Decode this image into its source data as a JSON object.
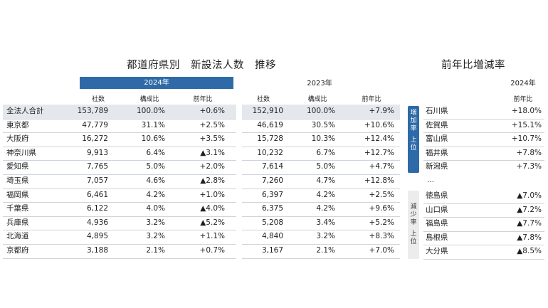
{
  "left_title": "都道府県別　新設法人数　推移",
  "right_title": "前年比増減率",
  "year_2024": "2024年",
  "year_2023": "2023年",
  "columns": {
    "companies": "社数",
    "share": "構成比",
    "yoy": "前年比"
  },
  "rows": [
    {
      "pref": "全法人合計",
      "c24": "153,789",
      "s24": "100.0%",
      "y24": "+0.6%",
      "c23": "152,910",
      "s23": "100.0%",
      "y23": "+7.9%"
    },
    {
      "pref": "東京都",
      "c24": "47,779",
      "s24": "31.1%",
      "y24": "+2.5%",
      "c23": "46,619",
      "s23": "30.5%",
      "y23": "+10.6%"
    },
    {
      "pref": "大阪府",
      "c24": "16,272",
      "s24": "10.6%",
      "y24": "+3.5%",
      "c23": "15,728",
      "s23": "10.3%",
      "y23": "+12.4%"
    },
    {
      "pref": "神奈川県",
      "c24": "9,913",
      "s24": "6.4%",
      "y24": "▲3.1%",
      "c23": "10,232",
      "s23": "6.7%",
      "y23": "+12.7%"
    },
    {
      "pref": "愛知県",
      "c24": "7,765",
      "s24": "5.0%",
      "y24": "+2.0%",
      "c23": "7,614",
      "s23": "5.0%",
      "y23": "+4.7%"
    },
    {
      "pref": "埼玉県",
      "c24": "7,057",
      "s24": "4.6%",
      "y24": "▲2.8%",
      "c23": "7,260",
      "s23": "4.7%",
      "y23": "+12.8%"
    },
    {
      "pref": "福岡県",
      "c24": "6,461",
      "s24": "4.2%",
      "y24": "+1.0%",
      "c23": "6,397",
      "s23": "4.2%",
      "y23": "+2.5%"
    },
    {
      "pref": "千葉県",
      "c24": "6,122",
      "s24": "4.0%",
      "y24": "▲4.0%",
      "c23": "6,375",
      "s23": "4.2%",
      "y23": "+9.6%"
    },
    {
      "pref": "兵庫県",
      "c24": "4,936",
      "s24": "3.2%",
      "y24": "▲5.2%",
      "c23": "5,208",
      "s23": "3.4%",
      "y23": "+5.2%"
    },
    {
      "pref": "北海道",
      "c24": "4,895",
      "s24": "3.2%",
      "y24": "+1.1%",
      "c23": "4,840",
      "s23": "3.2%",
      "y23": "+8.3%"
    },
    {
      "pref": "京都府",
      "c24": "3,188",
      "s24": "2.1%",
      "y24": "+0.7%",
      "c23": "3,167",
      "s23": "2.1%",
      "y23": "+7.0%"
    }
  ],
  "right_year": "2024年",
  "right_col": "前年比",
  "increase_label": [
    "増",
    "加",
    "率",
    "",
    "上",
    "位"
  ],
  "decrease_label": [
    "減",
    "少",
    "率",
    "",
    "上",
    "位"
  ],
  "increase": [
    {
      "pref": "石川県",
      "val": "+18.0%"
    },
    {
      "pref": "佐賀県",
      "val": "+15.1%"
    },
    {
      "pref": "富山県",
      "val": "+10.7%"
    },
    {
      "pref": "福井県",
      "val": "+7.8%"
    },
    {
      "pref": "新潟県",
      "val": "+7.3%"
    }
  ],
  "ellipsis": "…",
  "decrease": [
    {
      "pref": "徳島県",
      "val": "▲7.0%"
    },
    {
      "pref": "山口県",
      "val": "▲7.2%"
    },
    {
      "pref": "福島県",
      "val": "▲7.7%"
    },
    {
      "pref": "島根県",
      "val": "▲7.8%"
    },
    {
      "pref": "大分県",
      "val": "▲8.5%"
    }
  ]
}
